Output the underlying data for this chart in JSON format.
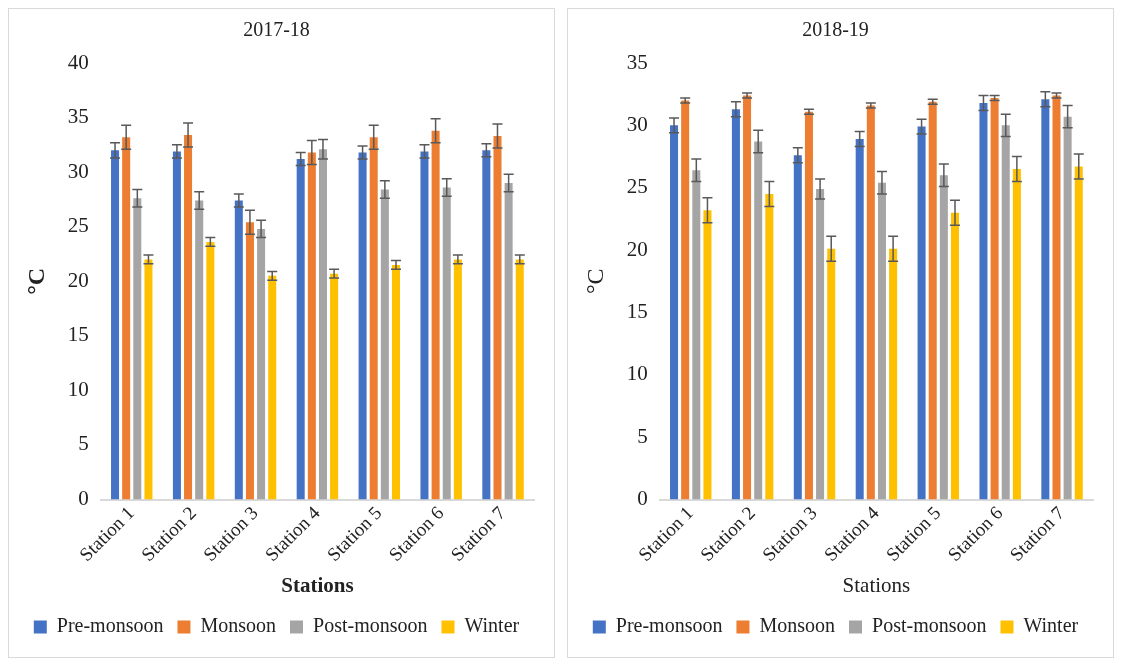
{
  "chart_data": [
    {
      "type": "bar",
      "title": "2017-18",
      "xlabel": "Stations",
      "ylabel": "°C",
      "categories": [
        "Station 1",
        "Station 2",
        "Station 3",
        "Station 4",
        "Station 5",
        "Station 6",
        "Station 7"
      ],
      "series": [
        {
          "name": "Pre-monsoon",
          "color": "#4472c4",
          "values": [
            32.0,
            31.9,
            27.4,
            31.2,
            31.8,
            31.9,
            32.0
          ],
          "errors": [
            0.7,
            0.6,
            0.6,
            0.6,
            0.6,
            0.6,
            0.6
          ]
        },
        {
          "name": "Monsoon",
          "color": "#ed7d31",
          "values": [
            33.2,
            33.4,
            25.4,
            31.8,
            33.2,
            33.8,
            33.3
          ],
          "errors": [
            1.1,
            1.1,
            1.1,
            1.1,
            1.1,
            1.1,
            1.1
          ]
        },
        {
          "name": "Post-monsoon",
          "color": "#a5a5a5",
          "values": [
            27.6,
            27.4,
            24.8,
            32.1,
            28.4,
            28.6,
            29.0
          ],
          "errors": [
            0.8,
            0.8,
            0.8,
            0.9,
            0.8,
            0.8,
            0.8
          ]
        },
        {
          "name": "Winter",
          "color": "#ffc000",
          "values": [
            22.0,
            23.6,
            20.5,
            20.7,
            21.5,
            22.0,
            22.0
          ],
          "errors": [
            0.4,
            0.4,
            0.4,
            0.4,
            0.4,
            0.4,
            0.4
          ]
        }
      ],
      "ylim": [
        0,
        40
      ],
      "yticks": [
        0,
        5,
        10,
        15,
        20,
        25,
        30,
        35,
        40
      ],
      "grid": false,
      "legend": "bottom"
    },
    {
      "type": "bar",
      "title": "2018-19",
      "xlabel": "Stations",
      "ylabel": "°C",
      "categories": [
        "Station 1",
        "Station 2",
        "Station 3",
        "Station 4",
        "Station 5",
        "Station 6",
        "Station 7"
      ],
      "series": [
        {
          "name": "Pre-monsoon",
          "color": "#4472c4",
          "values": [
            30.0,
            31.3,
            27.6,
            28.9,
            29.9,
            31.8,
            32.1
          ],
          "errors": [
            0.6,
            0.6,
            0.6,
            0.6,
            0.6,
            0.6,
            0.6
          ]
        },
        {
          "name": "Monsoon",
          "color": "#ed7d31",
          "values": [
            32.0,
            32.4,
            31.1,
            31.6,
            31.9,
            32.2,
            32.4
          ],
          "errors": [
            0.2,
            0.2,
            0.2,
            0.2,
            0.2,
            0.2,
            0.2
          ]
        },
        {
          "name": "Post-monsoon",
          "color": "#a5a5a5",
          "values": [
            26.4,
            28.7,
            24.9,
            25.4,
            26.0,
            30.0,
            30.7
          ],
          "errors": [
            0.9,
            0.9,
            0.8,
            0.9,
            0.9,
            0.9,
            0.9
          ]
        },
        {
          "name": "Winter",
          "color": "#ffc000",
          "values": [
            23.2,
            24.5,
            20.1,
            20.1,
            23.0,
            26.5,
            26.7
          ],
          "errors": [
            1.0,
            1.0,
            1.0,
            1.0,
            1.0,
            1.0,
            1.0
          ]
        }
      ],
      "ylim": [
        0,
        35
      ],
      "yticks": [
        0,
        5,
        10,
        15,
        20,
        25,
        30,
        35
      ],
      "grid": false,
      "legend": "bottom"
    }
  ]
}
